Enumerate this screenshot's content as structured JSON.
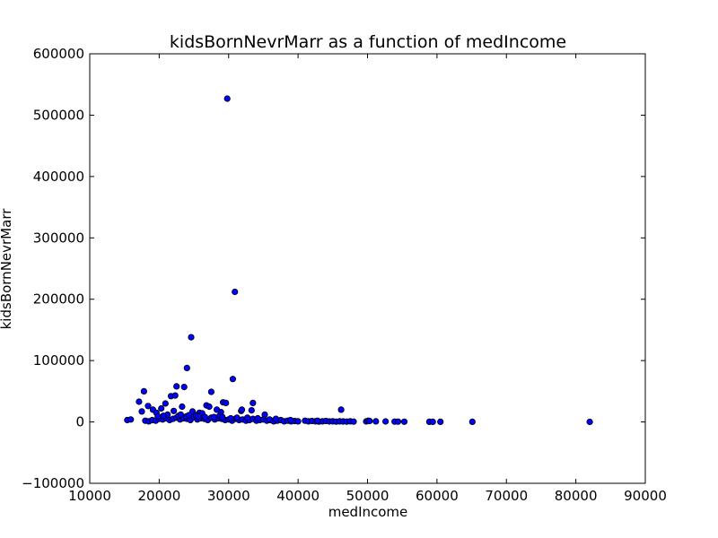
{
  "chart_data": {
    "type": "scatter",
    "title": "kidsBornNevrMarr as a function of medIncome",
    "xlabel": "medIncome",
    "ylabel": "kidsBornNevrMarr",
    "xlim": [
      10000,
      90000
    ],
    "ylim": [
      -100000,
      600000
    ],
    "xticks": [
      10000,
      20000,
      30000,
      40000,
      50000,
      60000,
      70000,
      80000,
      90000
    ],
    "yticks": [
      -100000,
      0,
      100000,
      200000,
      300000,
      400000,
      500000,
      600000
    ],
    "xtick_labels": [
      "10000",
      "20000",
      "30000",
      "40000",
      "50000",
      "60000",
      "70000",
      "80000",
      "90000"
    ],
    "ytick_labels": [
      "−100000",
      "0",
      "100000",
      "200000",
      "300000",
      "400000",
      "500000",
      "600000"
    ],
    "grid": false,
    "marker_color": "#0000ff",
    "marker_edge": "#000000",
    "series": [
      {
        "x": [
          29800,
          30900,
          24600,
          24000,
          30600,
          22500,
          23600,
          27500,
          17800,
          21700,
          22300,
          17100,
          18400,
          20900,
          19100,
          20300,
          17500,
          19600,
          23300,
          22100,
          26800,
          27200,
          29200,
          29600,
          33500,
          33300,
          46200,
          31800,
          31900,
          35200,
          25800,
          28900,
          28300,
          26200,
          24800,
          15400,
          15900,
          18000,
          18500,
          19000,
          19500,
          20000,
          20500,
          21000,
          21500,
          22000,
          22500,
          23000,
          23500,
          24000,
          24500,
          25000,
          25500,
          26000,
          26500,
          27000,
          27500,
          28000,
          28500,
          29000,
          29500,
          30000,
          30500,
          31000,
          31500,
          32000,
          32500,
          33000,
          33500,
          34000,
          34500,
          35000,
          35500,
          36000,
          36500,
          37000,
          37500,
          38000,
          38500,
          39000,
          39500,
          40000,
          41000,
          41500,
          42000,
          42500,
          43000,
          43500,
          44000,
          44500,
          45000,
          45500,
          46000,
          46500,
          47000,
          47500,
          48000,
          49800,
          50100,
          50300,
          51200,
          52600,
          53900,
          54400,
          55300,
          58900,
          59400,
          60500,
          65100,
          82000,
          21200,
          22800,
          23900,
          25300,
          26600,
          28700,
          31200,
          34200,
          36800,
          19800,
          24300,
          27900,
          30300,
          32700,
          35900,
          38900,
          42800,
          20600,
          23100,
          25600,
          29100
        ],
        "y": [
          527000,
          212000,
          138000,
          88000,
          70000,
          58000,
          57000,
          49000,
          50000,
          42000,
          43000,
          33000,
          26000,
          30000,
          20000,
          22000,
          17000,
          15000,
          25000,
          18000,
          27000,
          25000,
          32000,
          31000,
          31000,
          19000,
          20000,
          18000,
          20000,
          12000,
          15000,
          16000,
          20000,
          14000,
          17000,
          3000,
          4000,
          2000,
          1000,
          3000,
          2000,
          5000,
          4000,
          6000,
          3000,
          5000,
          7000,
          4000,
          6000,
          5000,
          3000,
          8000,
          4000,
          6000,
          5000,
          3000,
          7000,
          4000,
          6000,
          5000,
          3000,
          4000,
          2000,
          5000,
          3000,
          4000,
          2000,
          3000,
          5000,
          2000,
          3000,
          4000,
          2000,
          3000,
          1000,
          2000,
          3000,
          1000,
          2000,
          1000,
          1500,
          1000,
          2000,
          1000,
          1500,
          1000,
          500,
          1000,
          1500,
          800,
          1000,
          500,
          1000,
          800,
          500,
          1000,
          600,
          800,
          2000,
          1500,
          1000,
          800,
          500,
          600,
          400,
          300,
          200,
          300,
          200,
          100,
          12000,
          10000,
          9000,
          11000,
          8000,
          10000,
          7000,
          6000,
          5000,
          9000,
          11000,
          8000,
          6000,
          7000,
          4000,
          3000,
          2000,
          10000,
          12000,
          9000,
          8000
        ]
      }
    ]
  }
}
